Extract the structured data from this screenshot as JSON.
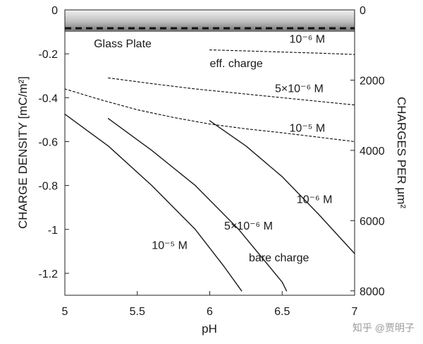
{
  "chart_data": {
    "type": "line",
    "xlabel": "pH",
    "ylabel_left": "CHARGE DENSITY [mC/m²]",
    "ylabel_right": "CHARGES PER µm²",
    "xlim": [
      5,
      7
    ],
    "ylim_left": [
      -1.3,
      0
    ],
    "ylim_right": [
      0,
      8125
    ],
    "x_ticks": [
      "5",
      "5.5",
      "6",
      "6.5",
      "7"
    ],
    "y_ticks_left": [
      "0",
      "-0.2",
      "-0.4",
      "-0.6",
      "-0.8",
      "-1",
      "-1.2"
    ],
    "y_ticks_right": [
      "0",
      "2000",
      "4000",
      "6000",
      "8000"
    ],
    "grid": false,
    "plate_label": "Glass Plate",
    "series": [
      {
        "group": "eff",
        "style": "dashed",
        "x": [
          6.0,
          6.25,
          6.5,
          6.75,
          7.0
        ],
        "y": [
          -0.182,
          -0.187,
          -0.192,
          -0.197,
          -0.203
        ]
      },
      {
        "group": "eff",
        "style": "dashed",
        "x": [
          5.3,
          5.6,
          5.9,
          6.2,
          6.5,
          6.8,
          7.0
        ],
        "y": [
          -0.31,
          -0.336,
          -0.36,
          -0.38,
          -0.4,
          -0.42,
          -0.433
        ]
      },
      {
        "group": "eff",
        "style": "dashed",
        "x": [
          5.0,
          5.25,
          5.5,
          5.75,
          6.0,
          6.25,
          6.5,
          6.75,
          7.0
        ],
        "y": [
          -0.36,
          -0.41,
          -0.455,
          -0.49,
          -0.52,
          -0.542,
          -0.56,
          -0.58,
          -0.6
        ]
      },
      {
        "group": "bare",
        "style": "solid",
        "x": [
          6.0,
          6.25,
          6.5,
          6.75,
          7.0
        ],
        "y": [
          -0.505,
          -0.62,
          -0.76,
          -0.93,
          -1.11
        ]
      },
      {
        "group": "bare",
        "style": "solid",
        "x": [
          5.3,
          5.6,
          5.9,
          6.2,
          6.5,
          6.53
        ],
        "y": [
          -0.495,
          -0.64,
          -0.8,
          -1.0,
          -1.24,
          -1.28
        ]
      },
      {
        "group": "bare",
        "style": "solid",
        "x": [
          5.0,
          5.3,
          5.6,
          5.9,
          6.1,
          6.22
        ],
        "y": [
          -0.475,
          -0.62,
          -0.8,
          -1.0,
          -1.17,
          -1.28
        ]
      }
    ],
    "annotations": [
      {
        "text": "Glass Plate",
        "x": 5.2,
        "y": -0.17
      },
      {
        "text": "10⁻⁶ M",
        "x": 6.55,
        "y": -0.15
      },
      {
        "text": "eff. charge",
        "x": 6.0,
        "y": -0.26
      },
      {
        "text": "5×10⁻⁶ M",
        "x": 6.45,
        "y": -0.375
      },
      {
        "text": "10⁻⁵ M",
        "x": 6.55,
        "y": -0.555
      },
      {
        "text": "10⁻⁶ M",
        "x": 6.6,
        "y": -0.88
      },
      {
        "text": "5×10⁻⁶ M",
        "x": 6.1,
        "y": -1.0
      },
      {
        "text": "10⁻⁵ M",
        "x": 5.6,
        "y": -1.09
      },
      {
        "text": "bare charge",
        "x": 6.27,
        "y": -1.145
      }
    ]
  },
  "watermark": "知乎 @贾明子"
}
